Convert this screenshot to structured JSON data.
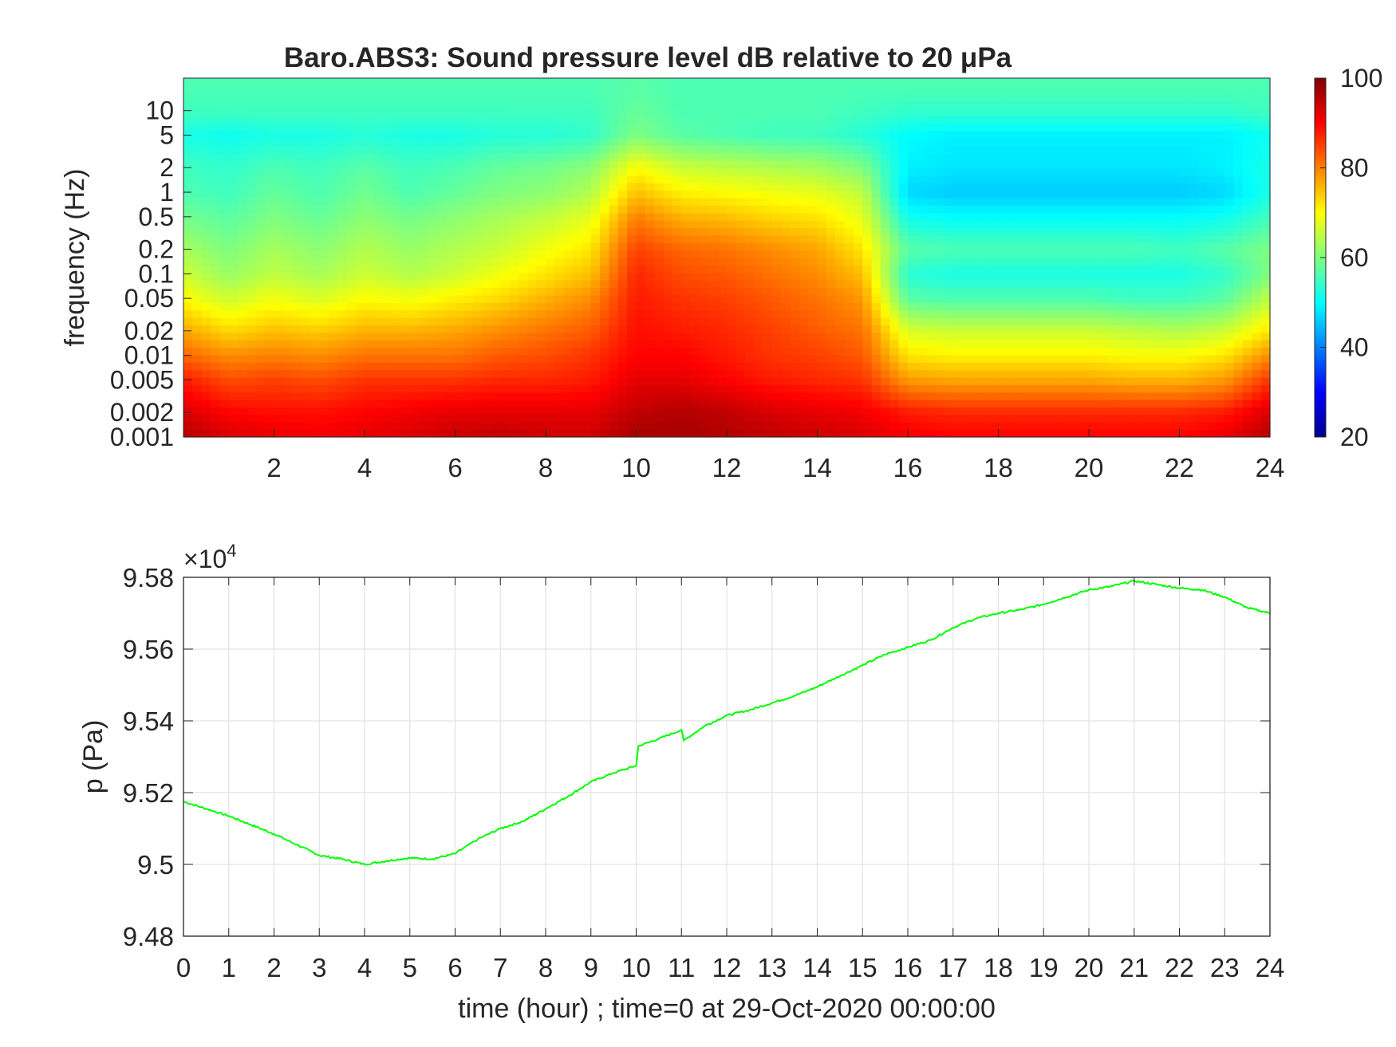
{
  "figure": {
    "title": "Baro.ABS3: Sound pressure level dB relative to 20 μPa"
  },
  "chart_data": [
    {
      "type": "heatmap",
      "title": "Baro.ABS3: Sound pressure level dB relative to 20 μPa",
      "xlabel": "",
      "ylabel": "frequency (Hz)",
      "xlim": [
        0,
        24
      ],
      "ylim": [
        0.001,
        25
      ],
      "yscale": "log",
      "xticks": [
        2,
        4,
        6,
        8,
        10,
        12,
        14,
        16,
        18,
        20,
        22,
        24
      ],
      "xtick_labels": [
        "2",
        "4",
        "6",
        "8",
        "10",
        "12",
        "14",
        "16",
        "18",
        "20",
        "22",
        "24"
      ],
      "yticks": [
        10,
        5,
        2,
        1,
        0.5,
        0.2,
        0.1,
        0.05,
        0.02,
        0.01,
        0.005,
        0.002,
        0.001
      ],
      "ytick_labels": [
        "10",
        "5",
        "2",
        "1",
        "0.5",
        "0.2",
        "0.1",
        "0.05",
        "0.02",
        "0.01",
        "0.005",
        "0.002",
        "0.001"
      ],
      "colormap": "jet",
      "clim": [
        20,
        100
      ],
      "colorbar_ticks": [
        20,
        40,
        60,
        80,
        100
      ],
      "colorbar_tick_labels": [
        "20",
        "40",
        "60",
        "80",
        "100"
      ],
      "z_dB": {
        "time_hour": [
          0,
          1,
          2,
          3,
          4,
          5,
          6,
          7,
          8,
          9,
          10,
          11,
          12,
          13,
          14,
          15,
          16,
          17,
          18,
          19,
          20,
          21,
          22,
          23,
          24
        ],
        "frequency_Hz": [
          0.001,
          0.002,
          0.005,
          0.01,
          0.02,
          0.05,
          0.1,
          0.2,
          0.5,
          1,
          2,
          5,
          10,
          20
        ],
        "rows": [
          [
            96,
            93,
            92,
            91,
            92,
            93,
            94,
            95,
            94,
            94,
            97,
            97,
            96,
            95,
            94,
            93,
            91,
            90,
            90,
            90,
            90,
            90,
            90,
            92,
            96
          ],
          [
            93,
            90,
            89,
            89,
            90,
            91,
            92,
            92,
            92,
            92,
            95,
            96,
            95,
            93,
            92,
            91,
            88,
            87,
            87,
            87,
            87,
            87,
            87,
            88,
            93
          ],
          [
            88,
            84,
            85,
            84,
            86,
            86,
            86,
            87,
            87,
            88,
            92,
            92,
            90,
            88,
            87,
            86,
            78,
            77,
            77,
            77,
            77,
            76,
            76,
            78,
            86
          ],
          [
            82,
            79,
            80,
            79,
            81,
            81,
            81,
            83,
            84,
            86,
            90,
            90,
            88,
            86,
            85,
            83,
            72,
            71,
            71,
            71,
            71,
            70,
            70,
            72,
            79
          ],
          [
            77,
            73,
            75,
            74,
            76,
            76,
            77,
            79,
            81,
            83,
            89,
            88,
            87,
            85,
            83,
            81,
            67,
            66,
            66,
            66,
            66,
            65,
            64,
            66,
            72
          ],
          [
            70,
            66,
            69,
            67,
            70,
            69,
            71,
            73,
            76,
            79,
            88,
            86,
            85,
            83,
            81,
            78,
            57,
            56,
            56,
            56,
            56,
            55,
            55,
            57,
            65
          ],
          [
            66,
            62,
            65,
            63,
            66,
            64,
            66,
            69,
            72,
            75,
            87,
            84,
            83,
            81,
            79,
            75,
            53,
            52,
            52,
            52,
            52,
            52,
            52,
            54,
            60
          ],
          [
            63,
            60,
            63,
            61,
            64,
            62,
            64,
            66,
            69,
            72,
            85,
            82,
            81,
            79,
            77,
            72,
            57,
            56,
            56,
            56,
            56,
            56,
            55,
            57,
            60
          ],
          [
            59,
            57,
            60,
            58,
            61,
            59,
            61,
            63,
            65,
            68,
            80,
            76,
            75,
            73,
            72,
            68,
            51,
            50,
            50,
            50,
            50,
            50,
            50,
            51,
            55
          ],
          [
            56,
            55,
            58,
            56,
            59,
            56,
            58,
            60,
            61,
            64,
            75,
            71,
            70,
            69,
            68,
            65,
            47,
            46,
            46,
            46,
            46,
            46,
            46,
            47,
            52
          ],
          [
            55,
            54,
            56,
            55,
            57,
            55,
            56,
            58,
            59,
            61,
            70,
            66,
            65,
            64,
            63,
            60,
            49,
            48,
            48,
            48,
            48,
            48,
            48,
            49,
            52
          ],
          [
            52,
            51,
            52,
            52,
            53,
            52,
            52,
            53,
            53,
            54,
            60,
            57,
            56,
            55,
            55,
            53,
            50,
            49,
            49,
            49,
            49,
            49,
            49,
            49,
            51
          ],
          [
            55,
            55,
            55,
            55,
            55,
            55,
            55,
            55,
            55,
            55,
            58,
            56,
            56,
            56,
            56,
            55,
            54,
            54,
            54,
            54,
            54,
            54,
            54,
            54,
            55
          ],
          [
            56,
            56,
            56,
            56,
            56,
            56,
            56,
            56,
            56,
            56,
            57,
            56,
            56,
            56,
            56,
            56,
            56,
            56,
            56,
            56,
            56,
            56,
            56,
            56,
            56
          ]
        ]
      }
    },
    {
      "type": "line",
      "title": "",
      "xlabel": "time (hour) ; time=0 at 29-Oct-2020 00:00:00",
      "ylabel": "p (Pa)",
      "xlim": [
        0,
        24
      ],
      "ylim": [
        94800,
        95800
      ],
      "y_exponent_label": "×10",
      "y_exponent_power": "4",
      "grid": true,
      "line_color": "#00ff00",
      "xticks": [
        0,
        1,
        2,
        3,
        4,
        5,
        6,
        7,
        8,
        9,
        10,
        11,
        12,
        13,
        14,
        15,
        16,
        17,
        18,
        19,
        20,
        21,
        22,
        23,
        24
      ],
      "xtick_labels": [
        "0",
        "1",
        "2",
        "3",
        "4",
        "5",
        "6",
        "7",
        "8",
        "9",
        "10",
        "11",
        "12",
        "13",
        "14",
        "15",
        "16",
        "17",
        "18",
        "19",
        "20",
        "21",
        "22",
        "23",
        "24"
      ],
      "yticks": [
        94800,
        95000,
        95200,
        95400,
        95600,
        95800
      ],
      "ytick_labels": [
        "9.48",
        "9.5",
        "9.52",
        "9.54",
        "9.56",
        "9.58"
      ],
      "series": [
        {
          "x": [
            0,
            0.5,
            1,
            1.5,
            2,
            2.5,
            3,
            3.5,
            4,
            4.5,
            5,
            5.5,
            6,
            6.5,
            7,
            7.5,
            8,
            8.5,
            9,
            9.5,
            10,
            10.05,
            10.5,
            11,
            11.05,
            11.5,
            12,
            12.5,
            13,
            13.5,
            14,
            14.5,
            15,
            15.5,
            16,
            16.5,
            17,
            17.5,
            18,
            18.5,
            19,
            19.5,
            20,
            20.5,
            21,
            21.5,
            22,
            22.5,
            23,
            23.5,
            24
          ],
          "y": [
            95175,
            95155,
            95135,
            95110,
            95085,
            95055,
            95025,
            95015,
            95000,
            95010,
            95018,
            95015,
            95030,
            95070,
            95100,
            95120,
            95155,
            95190,
            95230,
            95255,
            95275,
            95330,
            95350,
            95375,
            95345,
            95385,
            95415,
            95430,
            95450,
            95470,
            95495,
            95525,
            95555,
            95585,
            95605,
            95625,
            95660,
            95685,
            95700,
            95710,
            95725,
            95745,
            95765,
            95775,
            95790,
            95780,
            95770,
            95765,
            95745,
            95715,
            95700
          ]
        }
      ]
    }
  ]
}
